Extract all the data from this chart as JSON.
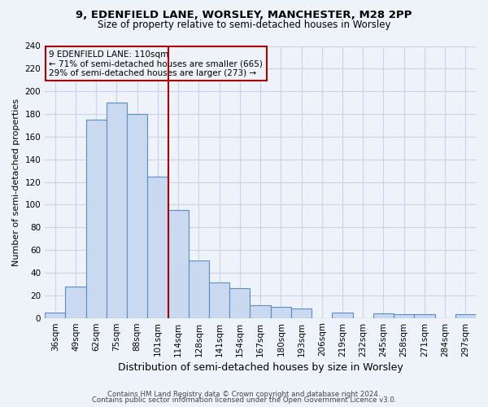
{
  "title1": "9, EDENFIELD LANE, WORSLEY, MANCHESTER, M28 2PP",
  "title2": "Size of property relative to semi-detached houses in Worsley",
  "xlabel": "Distribution of semi-detached houses by size in Worsley",
  "ylabel": "Number of semi-detached properties",
  "footer1": "Contains HM Land Registry data © Crown copyright and database right 2024.",
  "footer2": "Contains public sector information licensed under the Open Government Licence v3.0.",
  "bin_labels": [
    "36sqm",
    "49sqm",
    "62sqm",
    "75sqm",
    "88sqm",
    "101sqm",
    "114sqm",
    "128sqm",
    "141sqm",
    "154sqm",
    "167sqm",
    "180sqm",
    "193sqm",
    "206sqm",
    "219sqm",
    "232sqm",
    "245sqm",
    "258sqm",
    "271sqm",
    "284sqm",
    "297sqm"
  ],
  "bar_heights": [
    5,
    28,
    175,
    190,
    180,
    125,
    95,
    51,
    31,
    26,
    11,
    10,
    8,
    0,
    5,
    0,
    4,
    3,
    3,
    0,
    3
  ],
  "bar_color": "#c9d9ef",
  "bar_edge_color": "#5b8dc8",
  "property_label_line1": "9 EDENFIELD LANE: 110sqm",
  "property_label_line2": "← 71% of semi-detached houses are smaller (665)",
  "property_label_line3": "29% of semi-detached houses are larger (273) →",
  "pct_smaller": 71,
  "pct_larger": 29,
  "count_smaller": 665,
  "count_larger": 273,
  "vline_color": "#aa0000",
  "ylim": [
    0,
    240
  ],
  "yticks": [
    0,
    20,
    40,
    60,
    80,
    100,
    120,
    140,
    160,
    180,
    200,
    220,
    240
  ],
  "grid_color": "#c8d4e8",
  "bg_color": "#eef2f9",
  "title_fontsize": 9.5,
  "subtitle_fontsize": 8.5,
  "tick_fontsize": 7.5,
  "ylabel_fontsize": 8,
  "xlabel_fontsize": 9
}
